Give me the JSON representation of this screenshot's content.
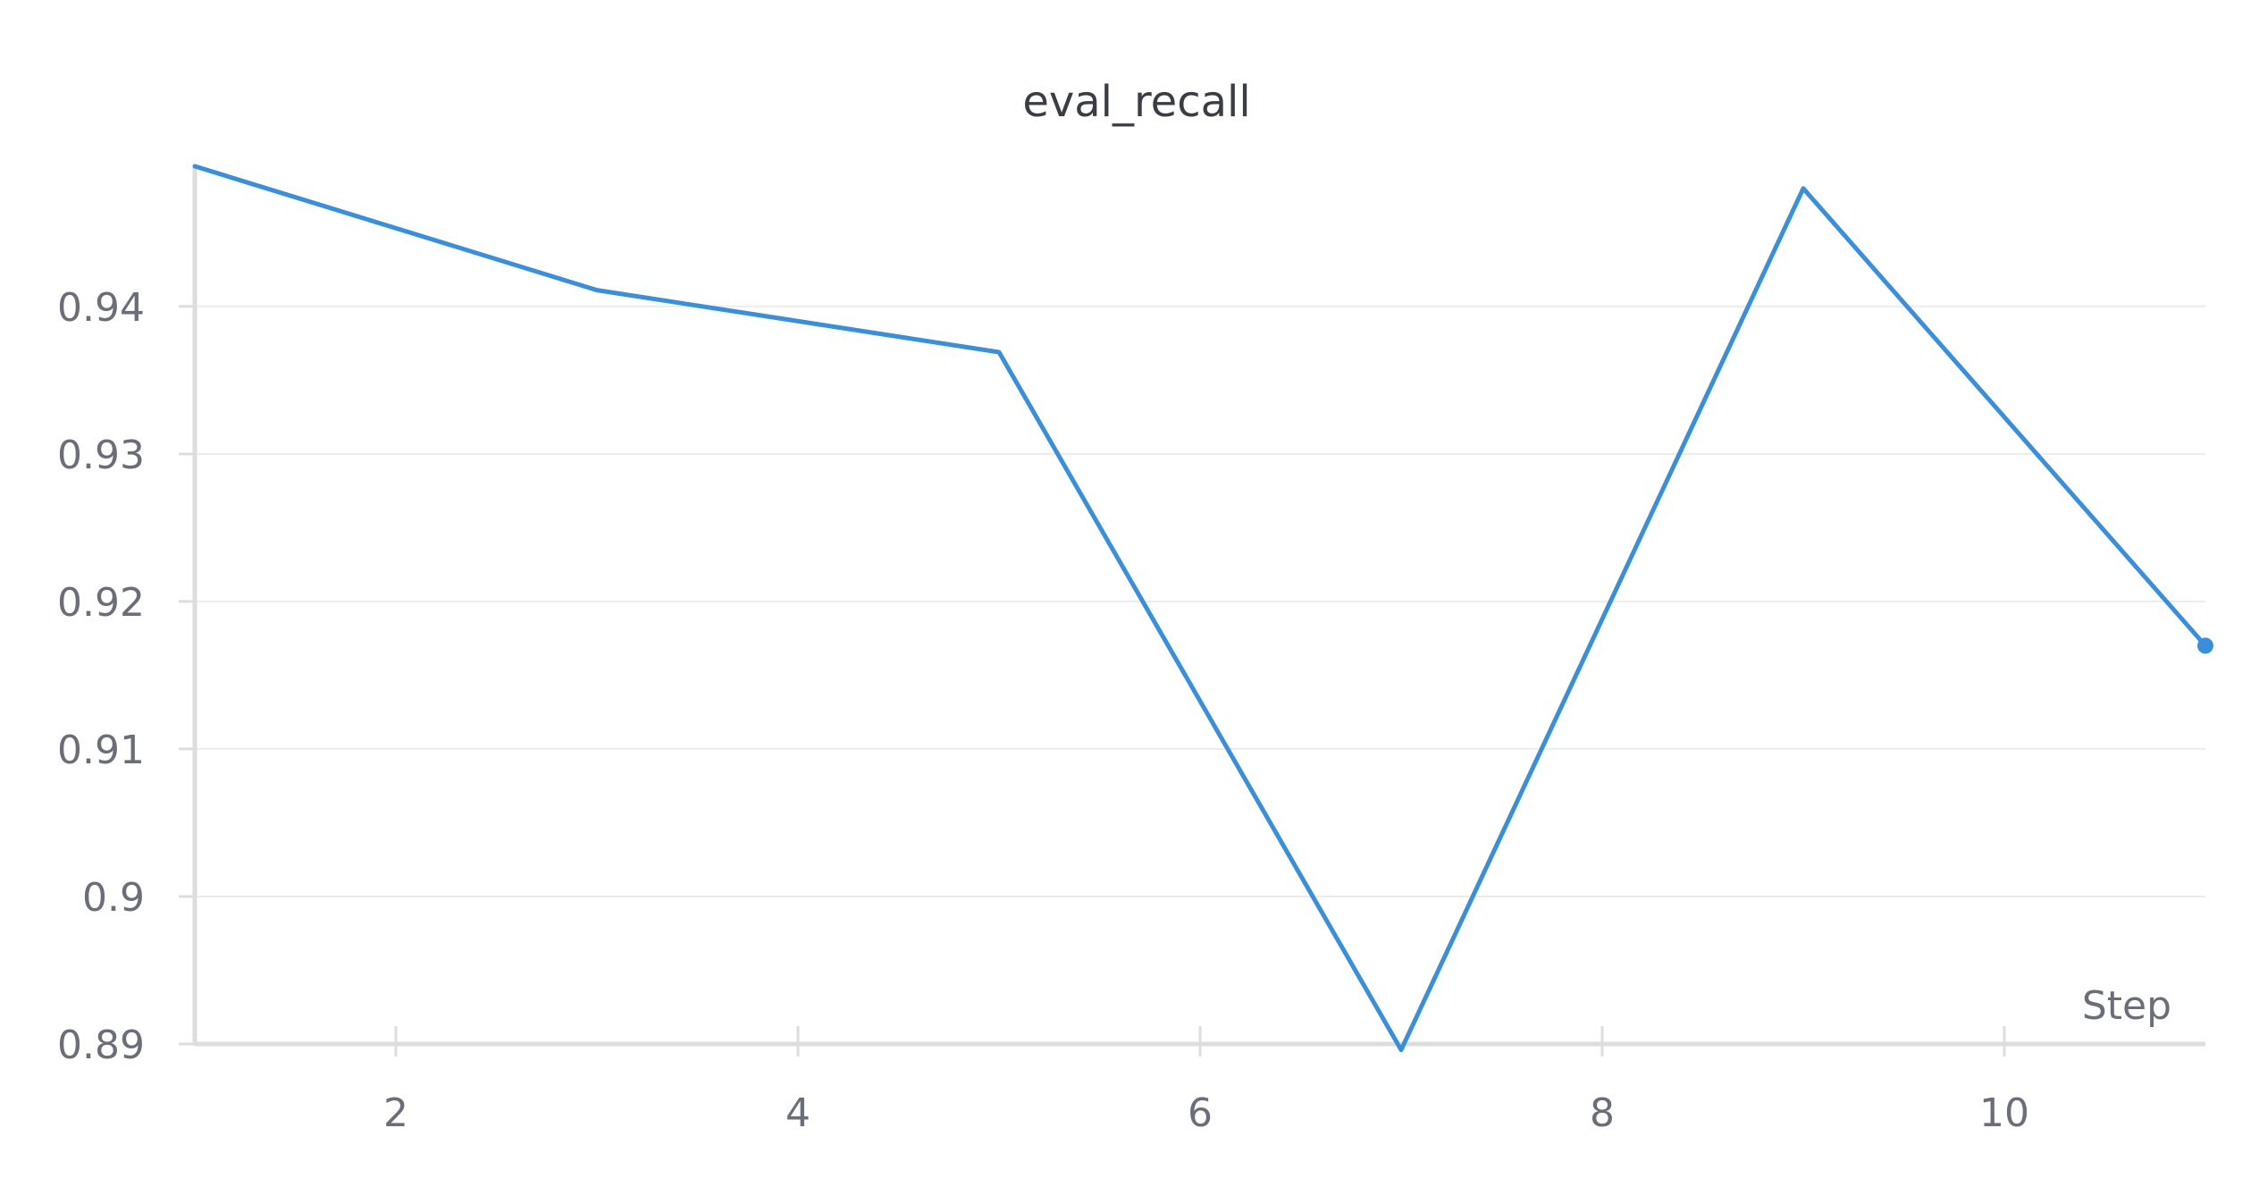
{
  "chart_data": {
    "type": "line",
    "title": "eval_recall",
    "xlabel": "Step",
    "ylabel": "",
    "xlim": [
      1,
      11
    ],
    "ylim": [
      0.89,
      0.9495
    ],
    "x_ticks": [
      2,
      4,
      6,
      8,
      10
    ],
    "y_ticks": [
      0.89,
      0.9,
      0.91,
      0.92,
      0.93,
      0.94
    ],
    "y_tick_labels": [
      "0.89",
      "0.9",
      "0.91",
      "0.92",
      "0.93",
      "0.94"
    ],
    "x_tick_labels": [
      "2",
      "4",
      "6",
      "8",
      "10"
    ],
    "grid": true,
    "series": [
      {
        "color": "#3b8fd9",
        "x": [
          1,
          3,
          5,
          7,
          9,
          11
        ],
        "y": [
          0.9495,
          0.9411,
          0.9369,
          0.8896,
          0.948,
          0.917
        ],
        "end_marker": true
      }
    ]
  }
}
